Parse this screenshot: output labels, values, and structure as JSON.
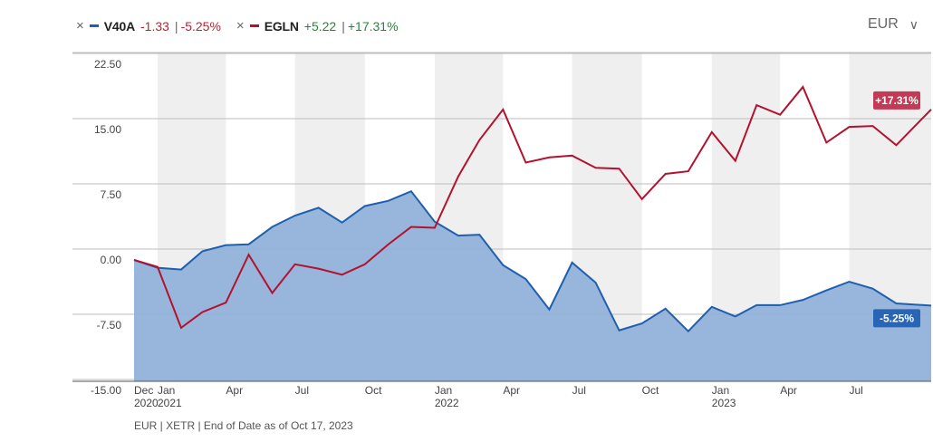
{
  "legend": {
    "series": [
      {
        "ticker": "V40A",
        "change": "-1.33",
        "pct": "-5.25%",
        "color": "#1f5fae",
        "change_color": "#c0202e"
      },
      {
        "ticker": "EGLN",
        "change": "+5.22",
        "pct": "+17.31%",
        "color": "#b3122e",
        "change_color": "#23873a"
      }
    ]
  },
  "currency": {
    "label": "EUR"
  },
  "footnote": "EUR | XETR | End of Date as of Oct 17, 2023",
  "chart_data": {
    "type": "line",
    "ylim": [
      -15,
      22.5
    ],
    "yticks": [
      22.5,
      15,
      7.5,
      0,
      -7.5,
      -15
    ],
    "ytick_labels": [
      "22.50",
      "15.00",
      "7.50",
      "0.00",
      "-7.50",
      "-15.00"
    ],
    "xlim": [
      "2020-12-01",
      "2023-10-17"
    ],
    "xticks": [
      {
        "date": "2020-12-01",
        "line1": "Dec",
        "line2": "2020"
      },
      {
        "date": "2021-01-01",
        "line1": "Jan",
        "line2": "2021"
      },
      {
        "date": "2021-04-01",
        "line1": "Apr",
        "line2": ""
      },
      {
        "date": "2021-07-01",
        "line1": "Jul",
        "line2": ""
      },
      {
        "date": "2021-10-01",
        "line1": "Oct",
        "line2": ""
      },
      {
        "date": "2022-01-01",
        "line1": "Jan",
        "line2": "2022"
      },
      {
        "date": "2022-04-01",
        "line1": "Apr",
        "line2": ""
      },
      {
        "date": "2022-07-01",
        "line1": "Jul",
        "line2": ""
      },
      {
        "date": "2022-10-01",
        "line1": "Oct",
        "line2": ""
      },
      {
        "date": "2023-01-01",
        "line1": "Jan",
        "line2": "2023"
      },
      {
        "date": "2023-04-01",
        "line1": "Apr",
        "line2": ""
      },
      {
        "date": "2023-07-01",
        "line1": "Jul",
        "line2": ""
      }
    ],
    "shaded_quarters": [
      [
        "2021-01-01",
        "2021-04-01"
      ],
      [
        "2021-07-01",
        "2021-10-01"
      ],
      [
        "2022-01-01",
        "2022-04-01"
      ],
      [
        "2022-07-01",
        "2022-10-01"
      ],
      [
        "2023-01-01",
        "2023-04-01"
      ],
      [
        "2023-07-01",
        "2023-10-17"
      ]
    ],
    "dates": [
      "2020-12-01",
      "2021-01-01",
      "2021-02-01",
      "2021-03-01",
      "2021-04-01",
      "2021-05-01",
      "2021-06-01",
      "2021-07-01",
      "2021-08-01",
      "2021-09-01",
      "2021-10-01",
      "2021-11-01",
      "2021-12-01",
      "2022-01-01",
      "2022-02-01",
      "2022-03-01",
      "2022-04-01",
      "2022-05-01",
      "2022-06-01",
      "2022-07-01",
      "2022-08-01",
      "2022-09-01",
      "2022-10-01",
      "2022-11-01",
      "2022-12-01",
      "2023-01-01",
      "2023-02-01",
      "2023-03-01",
      "2023-04-01",
      "2023-05-01",
      "2023-06-01",
      "2023-07-01",
      "2023-08-01",
      "2023-09-01",
      "2023-10-17"
    ],
    "series": [
      {
        "name": "V40A",
        "color": "#1f5fae",
        "fill": "#92b1d9",
        "end_label": "-5.25%",
        "values": [
          0.0,
          -0.9,
          -1.1,
          1.0,
          1.7,
          1.8,
          3.8,
          5.1,
          6.0,
          4.3,
          6.2,
          6.8,
          7.9,
          4.4,
          2.8,
          2.9,
          -0.6,
          -2.2,
          -5.7,
          -0.3,
          -2.6,
          -8.1,
          -7.3,
          -5.6,
          -8.2,
          -5.4,
          -6.5,
          -5.2,
          -5.2,
          -4.6,
          -3.5,
          -2.5,
          -3.3,
          -5.0,
          -5.25
        ]
      },
      {
        "name": "EGLN",
        "color": "#b3122e",
        "end_label": "+17.31%",
        "values": [
          0.0,
          -0.8,
          -7.8,
          -6.0,
          -4.9,
          0.6,
          -3.8,
          -0.5,
          -1.0,
          -1.7,
          -0.5,
          1.8,
          3.8,
          3.7,
          9.6,
          13.8,
          17.3,
          11.2,
          11.8,
          12.0,
          10.6,
          10.5,
          7.0,
          9.9,
          10.2,
          14.7,
          11.4,
          17.8,
          16.7,
          19.9,
          13.5,
          15.3,
          15.4,
          13.2,
          17.31
        ]
      }
    ]
  }
}
